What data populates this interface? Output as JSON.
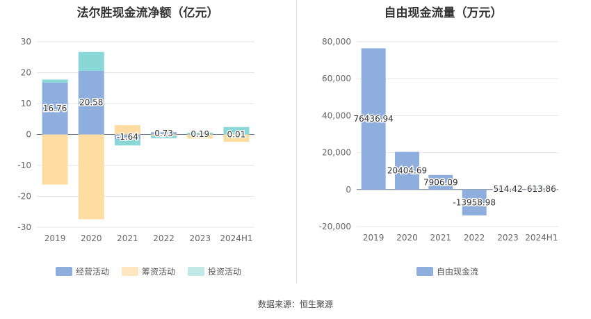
{
  "colors": {
    "operating": "#8eaedd",
    "financing": "#ffdca1",
    "investing": "#89d7d6",
    "fcf": "#8eaedd"
  },
  "source": "数据来源：恒生聚源",
  "chart_data": [
    {
      "type": "bar",
      "stacked": true,
      "title": "法尔胜现金流净额（亿元）",
      "categories": [
        "2019",
        "2020",
        "2021",
        "2022",
        "2023",
        "2024H1"
      ],
      "ylim": [
        -30,
        30
      ],
      "yticks": [
        -30,
        -20,
        -10,
        0,
        10,
        20,
        30
      ],
      "grid": true,
      "legend_position": "bottom",
      "series": [
        {
          "name": "经营活动",
          "color": "#8eaedd",
          "values": [
            16.76,
            20.58,
            -1.64,
            0.73,
            0.19,
            0.01
          ]
        },
        {
          "name": "筹资活动",
          "color": "#ffdca1",
          "values": [
            -16.2,
            -27.4,
            3.0,
            -0.4,
            -1.3,
            -2.4
          ]
        },
        {
          "name": "投资活动",
          "color": "#89d7d6",
          "values": [
            1.0,
            6.1,
            -1.9,
            -0.8,
            0.4,
            2.4
          ]
        }
      ],
      "data_labels": [
        "16.76",
        "20.58",
        "-1.64",
        "0.73",
        "0.19",
        "0.01"
      ]
    },
    {
      "type": "bar",
      "title": "自由现金流量（万元）",
      "categories": [
        "2019",
        "2020",
        "2021",
        "2022",
        "2023",
        "2024H1"
      ],
      "ylim": [
        -20000,
        80000
      ],
      "yticks": [
        -20000,
        0,
        20000,
        40000,
        60000,
        80000
      ],
      "ytick_labels": [
        "-20,000",
        "0",
        "20,000",
        "40,000",
        "60,000",
        "80,000"
      ],
      "grid": true,
      "legend_position": "bottom",
      "series": [
        {
          "name": "自由现金流",
          "color": "#8eaedd",
          "values": [
            76436.94,
            20404.69,
            7906.09,
            -13958.98,
            514.42,
            613.86
          ]
        }
      ],
      "data_labels": [
        "76436.94",
        "20404.69",
        "7906.09",
        "-13958.98",
        "514.42",
        "613.86"
      ]
    }
  ]
}
